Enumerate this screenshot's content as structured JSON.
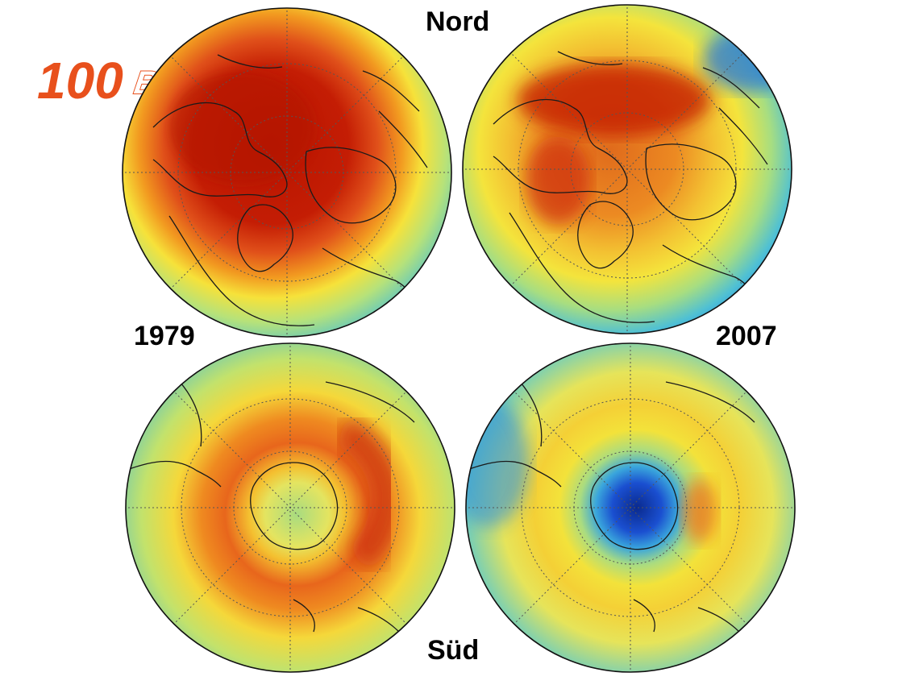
{
  "labels": {
    "north": "Nord",
    "south": "Süd",
    "year_left": "1979",
    "year_right": "2007"
  },
  "logo": {
    "number": "100",
    "word": "ВЕСТЕЙ",
    "color": "#e8501c"
  },
  "colors": {
    "dark_red": "#b81400",
    "red": "#d83a10",
    "orange": "#ef7a1a",
    "yellow": "#f4e83a",
    "green_yellow": "#c6e468",
    "cyan": "#6ccfc8",
    "light_blue": "#3aa6dc",
    "blue": "#1a5fd6",
    "dark_blue": "#0a2a8e"
  },
  "maps": [
    {
      "id": "north-1979",
      "hemisphere": "north",
      "year": "1979",
      "ozone_level": "high"
    },
    {
      "id": "north-2007",
      "hemisphere": "north",
      "year": "2007",
      "ozone_level": "high, reduced"
    },
    {
      "id": "south-1979",
      "hemisphere": "south",
      "year": "1979",
      "ozone_level": "ring high, pole moderate"
    },
    {
      "id": "south-2007",
      "hemisphere": "south",
      "year": "2007",
      "ozone_level": "ozone hole over pole"
    }
  ]
}
